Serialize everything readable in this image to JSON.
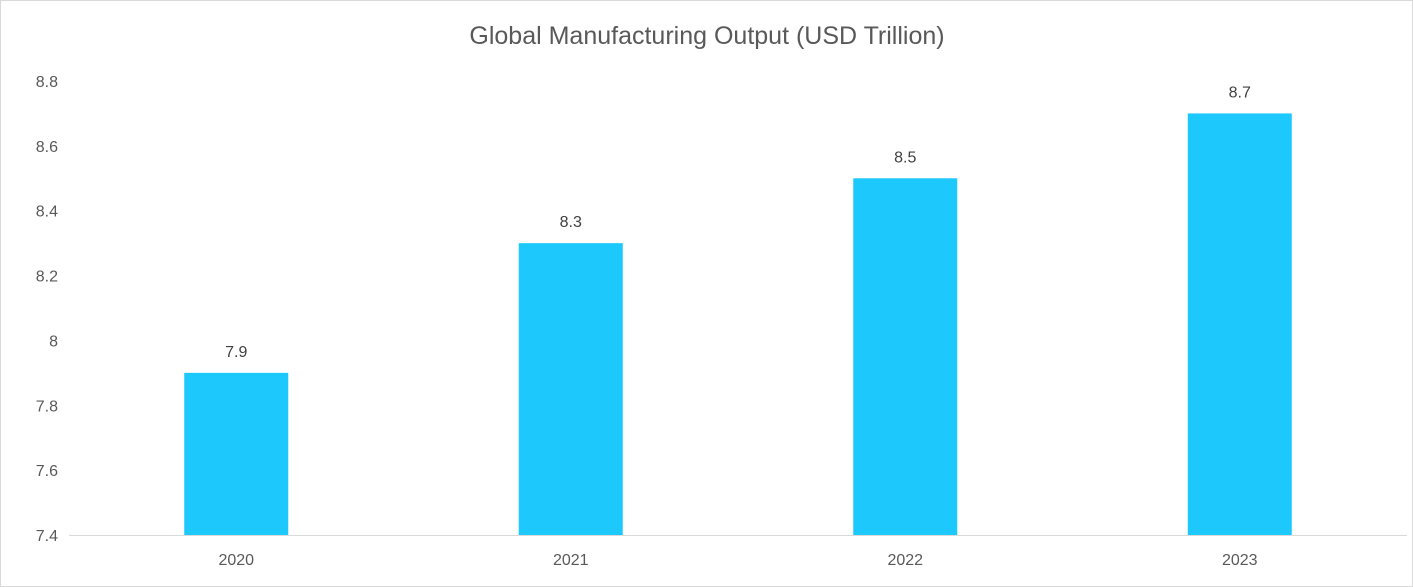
{
  "chart_data": {
    "type": "bar",
    "title": "Global Manufacturing Output (USD Trillion)",
    "categories": [
      "2020",
      "2021",
      "2022",
      "2023"
    ],
    "values": [
      7.9,
      8.3,
      8.5,
      8.7
    ],
    "data_labels": [
      "7.9",
      "8.3",
      "8.5",
      "8.7"
    ],
    "xlabel": "",
    "ylabel": "",
    "ylim": [
      7.4,
      8.8
    ],
    "y_ticks": [
      7.4,
      7.6,
      7.8,
      8,
      8.2,
      8.4,
      8.6,
      8.8
    ],
    "y_tick_labels": [
      "7.4",
      "7.6",
      "7.8",
      "8",
      "8.2",
      "8.4",
      "8.6",
      "8.8"
    ],
    "grid": false,
    "legend": "none",
    "bar_color": "#1CC8FC",
    "axis_color": "#D9D9D9",
    "text_color": "#595959"
  }
}
